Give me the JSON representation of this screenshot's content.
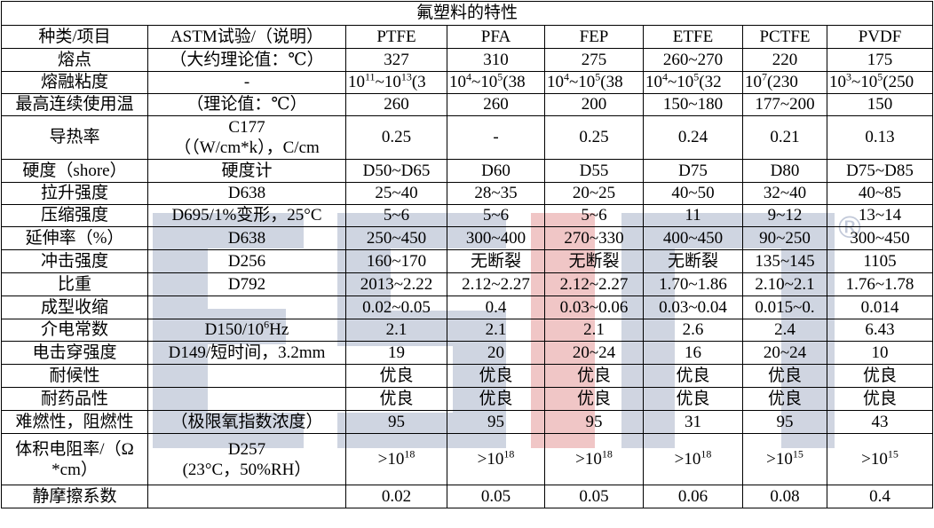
{
  "title": "氟塑料的特性",
  "header": [
    "种类/项目",
    "ASTM试验/（说明）",
    "PTFE",
    "PFA",
    "FEP",
    "ETFE",
    "PCTFE",
    "PVDF"
  ],
  "rows": [
    {
      "label": "熔点",
      "test": "（大约理论值：℃）",
      "values": [
        "327",
        "310",
        "275",
        "260~270",
        "220",
        "175"
      ]
    },
    {
      "label": "熔融粘度",
      "test": "-",
      "values": [
        {
          "base": "10",
          "e1": "11",
          "mid": "~10",
          "e2": "13",
          "tail": "(3"
        },
        {
          "base": "10",
          "e1": "4",
          "mid": "~10",
          "e2": "5",
          "tail": "(38"
        },
        {
          "base": "10",
          "e1": "4",
          "mid": "~10",
          "e2": "5",
          "tail": "(38"
        },
        {
          "base": "10",
          "e1": "4",
          "mid": "~10",
          "e2": "5",
          "tail": "(32"
        },
        {
          "base": "10",
          "e1": "7",
          "mid": "(230",
          "e2": "",
          "tail": ""
        },
        {
          "base": "10",
          "e1": "3",
          "mid": "~10",
          "e2": "5",
          "tail": "(250"
        }
      ]
    },
    {
      "label": "最高连续使用温",
      "test": "（理论值：℃）",
      "values": [
        "260",
        "260",
        "200",
        "150~180",
        "177~200",
        "150"
      ]
    },
    {
      "label": "导热率",
      "test_line1": "C177",
      "test_line2": "（（W/cm*k），C/cm",
      "values": [
        "0.25",
        "-",
        "0.25",
        "0.24",
        "0.21",
        "0.13"
      ]
    },
    {
      "label": "硬度（shore）",
      "test": "硬度计",
      "values": [
        "D50~D65",
        "D60",
        "D55",
        "D75",
        "D80",
        "D75~D85"
      ]
    },
    {
      "label": "拉升强度",
      "test": "D638",
      "values": [
        "25~40",
        "28~35",
        "20~25",
        "40~50",
        "32~40",
        "40~85"
      ]
    },
    {
      "label": "压缩强度",
      "test": "D695/1%变形，25°C",
      "values": [
        "5~6",
        "5~6",
        "5~6",
        "11",
        "9~12",
        "13~14"
      ]
    },
    {
      "label": "延伸率（%）",
      "test": "D638",
      "values": [
        "250~450",
        "300~400",
        "270~330",
        "400~450",
        "90~250",
        "300~450"
      ]
    },
    {
      "label": "冲击强度",
      "test": "D256",
      "values": [
        "160~170",
        "无断裂",
        "无断裂",
        "无断裂",
        "135~145",
        "1105"
      ]
    },
    {
      "label": "比重",
      "test": "D792",
      "values": [
        "2013~2.22",
        "2.12~2.27",
        "2.12~2.27",
        "1.70~1.86",
        "2.10~2.1",
        "1.76~1.78"
      ]
    },
    {
      "label": "成型收缩",
      "test": "",
      "values": [
        "0.02~0.05",
        "0.4",
        "0.03~0.06",
        "0.03~0.04",
        "0.015~0.",
        "0.014"
      ]
    },
    {
      "label": "介电常数",
      "test_base": "D150/10",
      "test_exp": "6",
      "test_tail": "Hz",
      "values": [
        "2.1",
        "2.1",
        "2.1",
        "2.6",
        "2.4",
        "6.43"
      ]
    },
    {
      "label": "电击穿强度",
      "test": "D149/短时间，3.2mm",
      "values": [
        "19",
        "20",
        "20~24",
        "16",
        "20~24",
        "10"
      ]
    },
    {
      "label": "耐候性",
      "test": "",
      "values": [
        "优良",
        "优良",
        "优良",
        "优良",
        "优良",
        "优良"
      ]
    },
    {
      "label": "耐药品性",
      "test": "",
      "values": [
        "优良",
        "优良",
        "优良",
        "优良",
        "优良",
        "优良"
      ]
    },
    {
      "label": "难燃性，阻燃性",
      "test": "（极限氧指数浓度）",
      "values": [
        "95",
        "95",
        "95",
        "31",
        "95",
        "43"
      ]
    },
    {
      "label_line1": "体积电阻率/（Ω",
      "label_line2": "*cm）",
      "test_line1": "D257",
      "test_line2": "(23°C，50%RH）",
      "values": [
        {
          "pre": ">10",
          "exp": "18"
        },
        {
          "pre": ">10",
          "exp": "18"
        },
        {
          "pre": ">10",
          "exp": "18"
        },
        {
          "pre": ">10",
          "exp": "18"
        },
        {
          "pre": ">10",
          "exp": "15"
        },
        {
          "pre": ">10",
          "exp": "15"
        }
      ]
    },
    {
      "label": "静摩擦系数",
      "test": "",
      "values": [
        "0.02",
        "0.05",
        "0.05",
        "0.06",
        "0.08",
        "0.4"
      ]
    }
  ],
  "watermark": {
    "text": "ESM",
    "mark": "®",
    "blue": "#9aa6c0",
    "red": "#e79a9a"
  }
}
